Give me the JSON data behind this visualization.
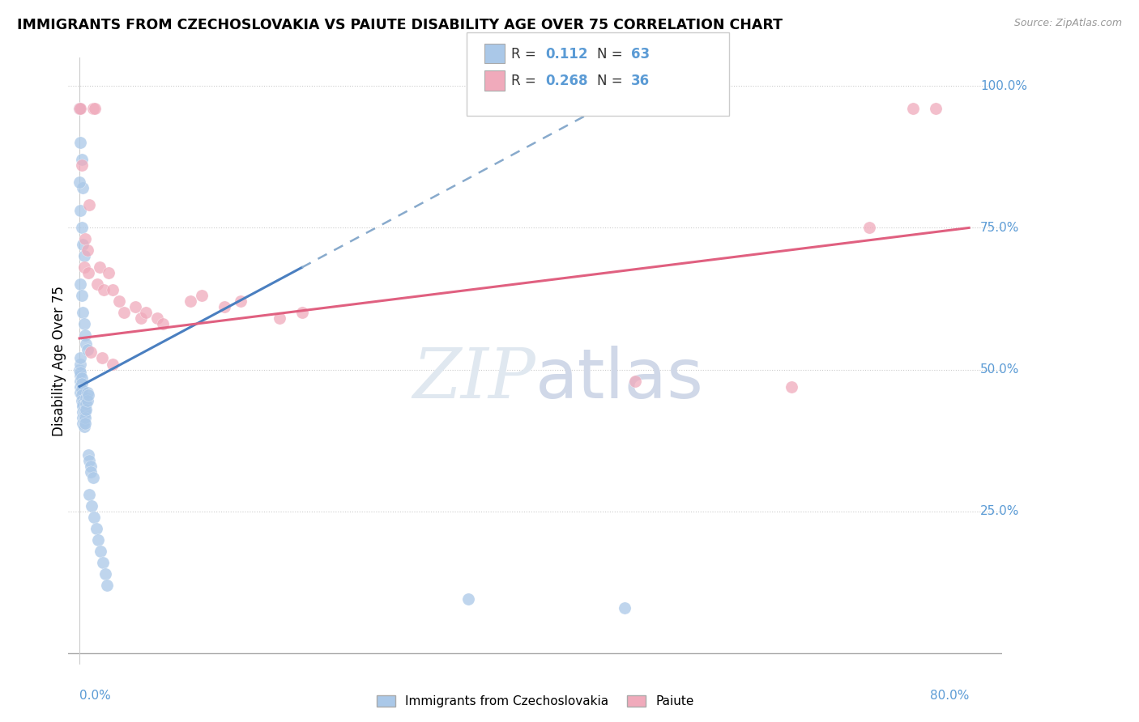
{
  "title": "IMMIGRANTS FROM CZECHOSLOVAKIA VS PAIUTE DISABILITY AGE OVER 75 CORRELATION CHART",
  "source": "Source: ZipAtlas.com",
  "ylabel": "Disability Age Over 75",
  "legend_blue_r": "0.112",
  "legend_blue_n": "63",
  "legend_pink_r": "0.268",
  "legend_pink_n": "36",
  "legend_label_blue": "Immigrants from Czechoslovakia",
  "legend_label_pink": "Paiute",
  "blue_color": "#aac8e8",
  "pink_color": "#f0aabb",
  "trend_blue_color": "#4a7fc0",
  "trend_pink_color": "#e06080",
  "trend_blue_dash_color": "#88aacc",
  "watermark": "ZIPatlas",
  "xmin": 0.0,
  "xmax": 0.8,
  "ymin": 0.0,
  "ymax": 1.0,
  "blue_scatter": [
    [
      0.0,
      0.5
    ],
    [
      0.001,
      0.49
    ],
    [
      0.001,
      0.48
    ],
    [
      0.001,
      0.47
    ],
    [
      0.001,
      0.46
    ],
    [
      0.001,
      0.51
    ],
    [
      0.001,
      0.52
    ],
    [
      0.001,
      0.495
    ],
    [
      0.002,
      0.485
    ],
    [
      0.002,
      0.475
    ],
    [
      0.002,
      0.465
    ],
    [
      0.002,
      0.455
    ],
    [
      0.002,
      0.445
    ],
    [
      0.003,
      0.44
    ],
    [
      0.003,
      0.435
    ],
    [
      0.003,
      0.425
    ],
    [
      0.003,
      0.415
    ],
    [
      0.003,
      0.405
    ],
    [
      0.004,
      0.43
    ],
    [
      0.004,
      0.42
    ],
    [
      0.004,
      0.41
    ],
    [
      0.004,
      0.4
    ],
    [
      0.005,
      0.425
    ],
    [
      0.005,
      0.415
    ],
    [
      0.005,
      0.405
    ],
    [
      0.006,
      0.45
    ],
    [
      0.006,
      0.44
    ],
    [
      0.006,
      0.43
    ],
    [
      0.007,
      0.46
    ],
    [
      0.007,
      0.445
    ],
    [
      0.008,
      0.455
    ],
    [
      0.008,
      0.35
    ],
    [
      0.009,
      0.34
    ],
    [
      0.01,
      0.33
    ],
    [
      0.01,
      0.32
    ],
    [
      0.012,
      0.31
    ],
    [
      0.0,
      0.96
    ],
    [
      0.001,
      0.9
    ],
    [
      0.002,
      0.87
    ],
    [
      0.003,
      0.82
    ],
    [
      0.0,
      0.83
    ],
    [
      0.001,
      0.78
    ],
    [
      0.002,
      0.75
    ],
    [
      0.003,
      0.72
    ],
    [
      0.004,
      0.7
    ],
    [
      0.001,
      0.65
    ],
    [
      0.002,
      0.63
    ],
    [
      0.003,
      0.6
    ],
    [
      0.004,
      0.58
    ],
    [
      0.005,
      0.56
    ],
    [
      0.006,
      0.545
    ],
    [
      0.007,
      0.535
    ],
    [
      0.009,
      0.28
    ],
    [
      0.011,
      0.26
    ],
    [
      0.013,
      0.24
    ],
    [
      0.015,
      0.22
    ],
    [
      0.017,
      0.2
    ],
    [
      0.019,
      0.18
    ],
    [
      0.021,
      0.16
    ],
    [
      0.023,
      0.14
    ],
    [
      0.025,
      0.12
    ],
    [
      0.35,
      0.095
    ],
    [
      0.49,
      0.08
    ]
  ],
  "pink_scatter": [
    [
      0.0,
      0.96
    ],
    [
      0.001,
      0.96
    ],
    [
      0.012,
      0.96
    ],
    [
      0.014,
      0.96
    ],
    [
      0.002,
      0.86
    ],
    [
      0.009,
      0.79
    ],
    [
      0.005,
      0.73
    ],
    [
      0.007,
      0.71
    ],
    [
      0.004,
      0.68
    ],
    [
      0.008,
      0.67
    ],
    [
      0.016,
      0.65
    ],
    [
      0.022,
      0.64
    ],
    [
      0.018,
      0.68
    ],
    [
      0.026,
      0.67
    ],
    [
      0.03,
      0.64
    ],
    [
      0.036,
      0.62
    ],
    [
      0.04,
      0.6
    ],
    [
      0.05,
      0.61
    ],
    [
      0.055,
      0.59
    ],
    [
      0.06,
      0.6
    ],
    [
      0.07,
      0.59
    ],
    [
      0.075,
      0.58
    ],
    [
      0.1,
      0.62
    ],
    [
      0.11,
      0.63
    ],
    [
      0.13,
      0.61
    ],
    [
      0.145,
      0.62
    ],
    [
      0.18,
      0.59
    ],
    [
      0.2,
      0.6
    ],
    [
      0.01,
      0.53
    ],
    [
      0.02,
      0.52
    ],
    [
      0.03,
      0.51
    ],
    [
      0.5,
      0.48
    ],
    [
      0.64,
      0.47
    ],
    [
      0.71,
      0.75
    ],
    [
      0.77,
      0.96
    ],
    [
      0.75,
      0.96
    ]
  ]
}
